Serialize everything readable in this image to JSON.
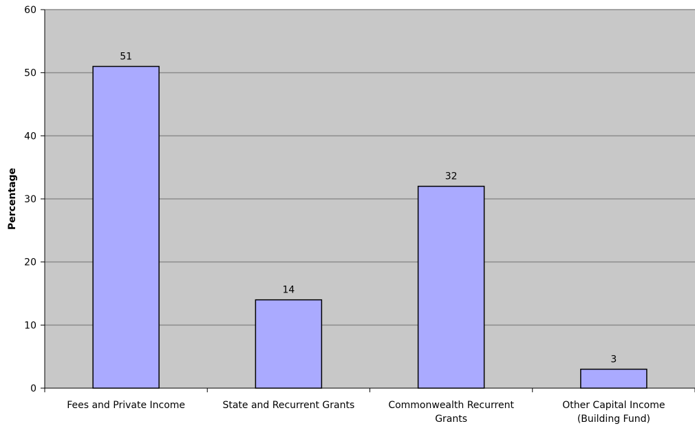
{
  "chart_data": {
    "type": "bar",
    "categories": [
      [
        "Fees and Private Income"
      ],
      [
        "State and Recurrent Grants"
      ],
      [
        "Commonwealth Recurrent",
        "Grants"
      ],
      [
        "Other Capital Income",
        "(Building Fund)"
      ]
    ],
    "values": [
      51,
      14,
      32,
      3
    ],
    "data_labels": [
      "51",
      "14",
      "32",
      "3"
    ],
    "title": "",
    "xlabel": "",
    "ylabel": "Percentage",
    "ylim": [
      0,
      60
    ],
    "yticks": [
      0,
      10,
      20,
      30,
      40,
      50,
      60
    ],
    "grid": true,
    "legend": "none",
    "colors": {
      "plot_background": "#c8c8c8",
      "bar_fill": "#aaaaff",
      "bar_stroke": "#000000",
      "gridline": "#8c8c8c"
    }
  }
}
